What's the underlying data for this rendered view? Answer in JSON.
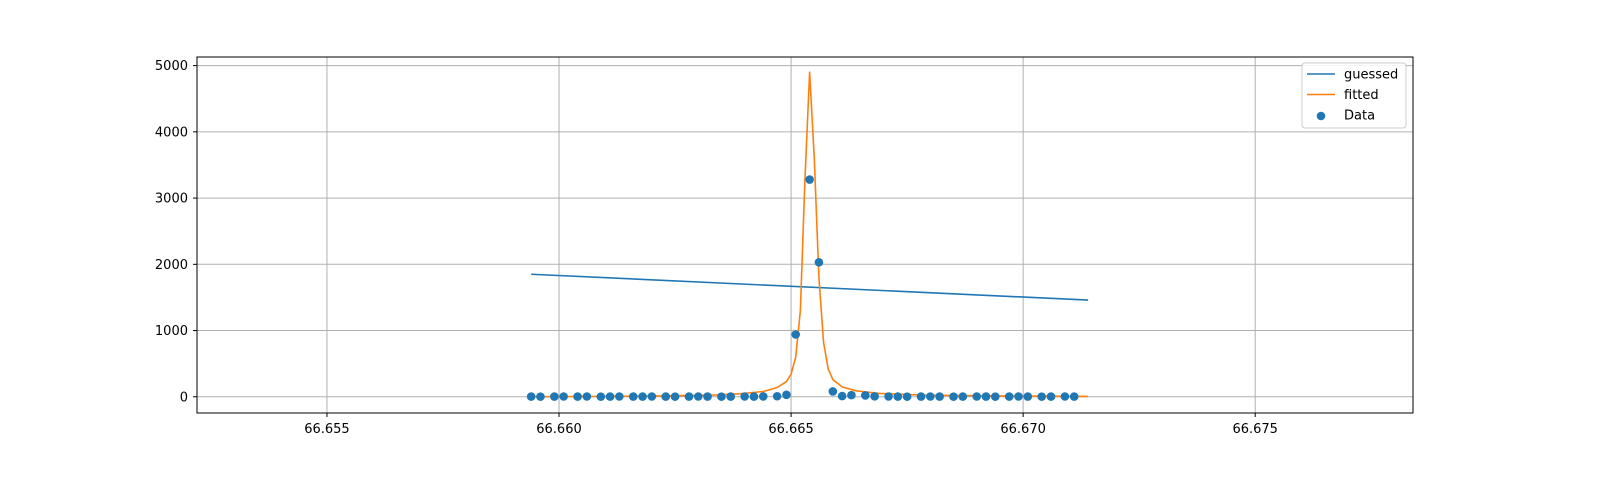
{
  "chart_data": {
    "type": "line",
    "title": "",
    "xlabel": "",
    "ylabel": "",
    "xlim": [
      66.6522,
      66.6784
    ],
    "ylim": [
      -245,
      5130
    ],
    "xticks": [
      66.655,
      66.66,
      66.665,
      66.67,
      66.675
    ],
    "xtick_labels": [
      "66.655",
      "66.660",
      "66.665",
      "66.670",
      "66.675"
    ],
    "yticks": [
      0,
      1000,
      2000,
      3000,
      4000,
      5000
    ],
    "ytick_labels": [
      "0",
      "1000",
      "2000",
      "3000",
      "4000",
      "5000"
    ],
    "grid": true,
    "legend_position": "top-right",
    "series": [
      {
        "name": "guessed",
        "kind": "line",
        "color": "#1f77b4",
        "x": [
          66.6594,
          66.6714
        ],
        "y": [
          1850,
          1460
        ]
      },
      {
        "name": "fitted",
        "kind": "line",
        "color": "#ff7f0e",
        "x": [
          66.6594,
          66.6604,
          66.6614,
          66.6624,
          66.6634,
          66.6639,
          66.6644,
          66.6647,
          66.6649,
          66.665,
          66.6651,
          66.6652,
          66.6653,
          66.6654,
          66.6655,
          66.6656,
          66.6657,
          66.6658,
          66.6659,
          66.6661,
          66.6664,
          66.6669,
          66.6679,
          66.6694,
          66.6714
        ],
        "y": [
          2,
          4,
          8,
          14,
          28,
          45,
          80,
          140,
          230,
          340,
          600,
          1300,
          3300,
          4900,
          3600,
          1800,
          820,
          420,
          260,
          150,
          90,
          50,
          25,
          12,
          5
        ]
      },
      {
        "name": "Data",
        "kind": "scatter",
        "color": "#1f77b4",
        "x": [
          66.6594,
          66.6596,
          66.6599,
          66.6601,
          66.6604,
          66.6606,
          66.6609,
          66.6611,
          66.6613,
          66.6616,
          66.6618,
          66.662,
          66.6623,
          66.6625,
          66.6628,
          66.663,
          66.6632,
          66.6635,
          66.6637,
          66.664,
          66.6642,
          66.6644,
          66.6647,
          66.6649,
          66.6651,
          66.6654,
          66.6656,
          66.6659,
          66.6661,
          66.6663,
          66.6666,
          66.6668,
          66.6671,
          66.6673,
          66.6675,
          66.6678,
          66.668,
          66.6682,
          66.6685,
          66.6687,
          66.669,
          66.6692,
          66.6694,
          66.6697,
          66.6699,
          66.6701,
          66.6704,
          66.6706,
          66.6709,
          66.6711
        ],
        "y": [
          3,
          2,
          3,
          4,
          3,
          4,
          2,
          3,
          4,
          3,
          3,
          4,
          3,
          2,
          3,
          4,
          3,
          2,
          3,
          4,
          3,
          5,
          8,
          30,
          940,
          3280,
          2030,
          80,
          10,
          25,
          20,
          6,
          4,
          3,
          2,
          3,
          4,
          3,
          2,
          3,
          4,
          3,
          2,
          3,
          4,
          3,
          2,
          3,
          4,
          3
        ]
      }
    ]
  }
}
